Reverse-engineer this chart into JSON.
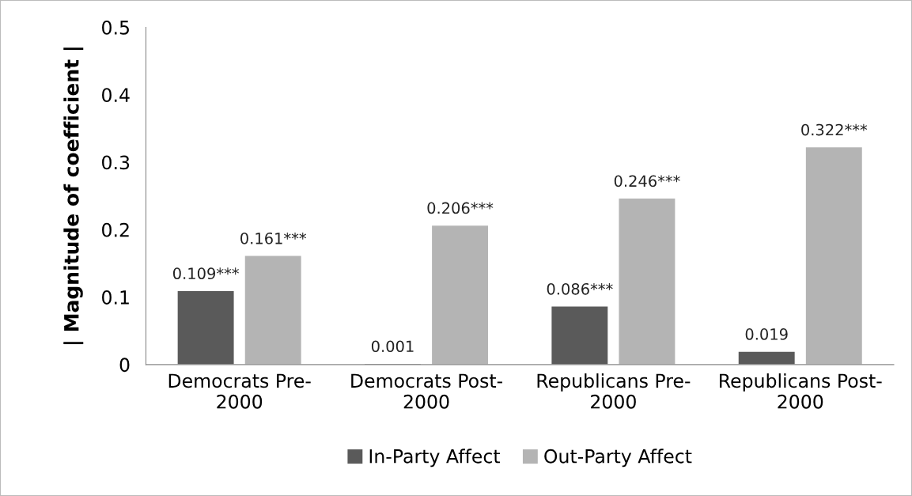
{
  "chart_data": {
    "type": "bar",
    "ylabel": "| Magnitude of coefficient |",
    "categories": [
      "Democrats Pre-\n2000",
      "Democrats Post-\n2000",
      "Republicans Pre-\n2000",
      "Republicans Post-\n2000"
    ],
    "series": [
      {
        "name": "In-Party Affect",
        "color": "#5a5a5a",
        "values": [
          0.109,
          0.001,
          0.086,
          0.019
        ],
        "value_labels": [
          "0.109***",
          "0.001",
          "0.086***",
          "0.019"
        ]
      },
      {
        "name": "Out-Party Affect",
        "color": "#b4b4b4",
        "values": [
          0.161,
          0.206,
          0.246,
          0.322
        ],
        "value_labels": [
          "0.161***",
          "0.206***",
          "0.246***",
          "0.322***"
        ]
      }
    ],
    "ylim": [
      0,
      0.5
    ],
    "yticks": [
      0,
      0.1,
      0.2,
      0.3,
      0.4,
      0.5
    ],
    "grid": false,
    "legend": "bottom"
  }
}
